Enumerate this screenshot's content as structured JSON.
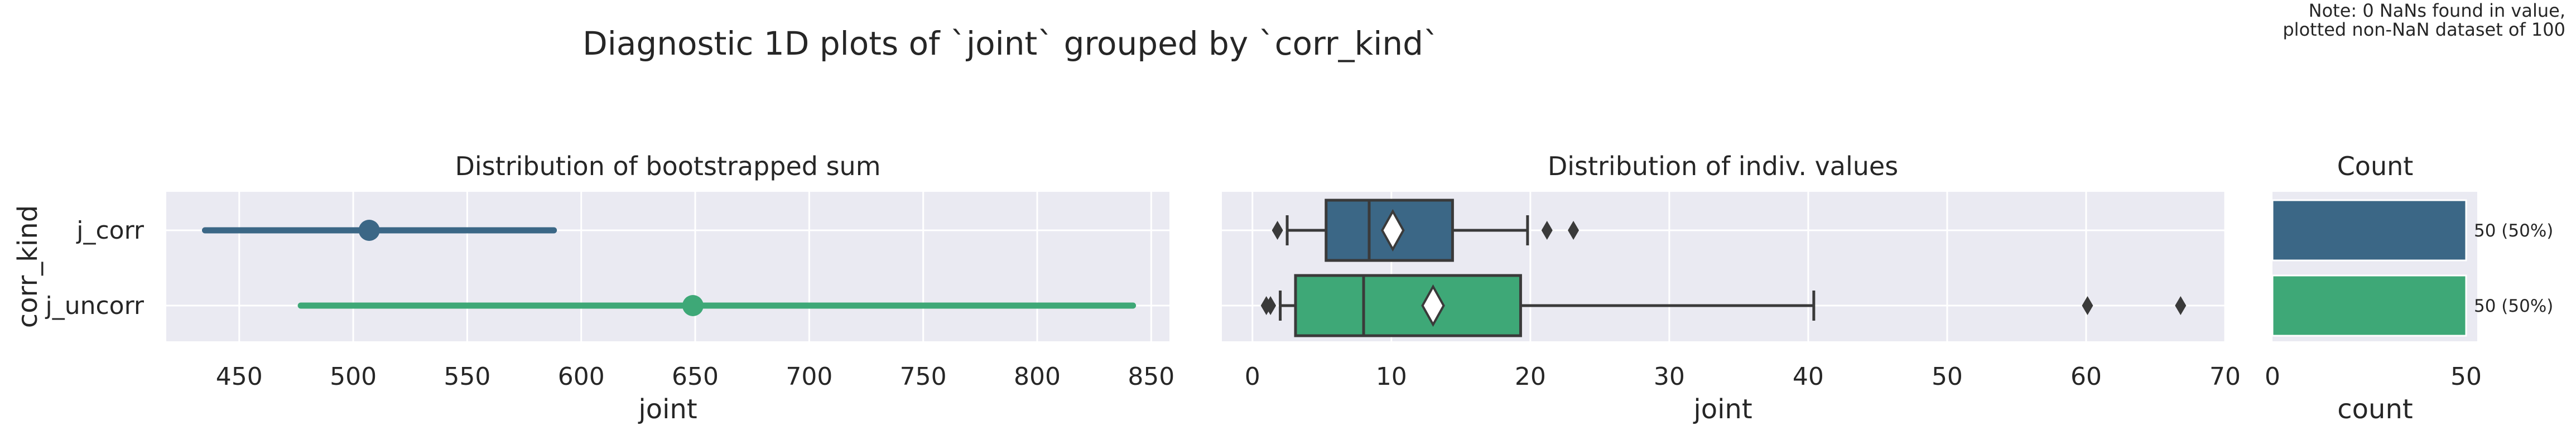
{
  "suptitle": "Diagnostic 1D plots of `joint` grouped by `corr_kind`",
  "note_lines": [
    "Note: 0 NaNs found in value,",
    "plotted non-NaN dataset of 100"
  ],
  "colors": {
    "j_corr": "#3b6786",
    "j_uncorr": "#3ea877",
    "panel_bg": "#eaeaf2",
    "grid": "#ffffff",
    "text": "#262626",
    "box_line": "#3a3a3a"
  },
  "chart_data": [
    {
      "type": "pointplot",
      "title": "Distribution of bootstrapped sum",
      "xlabel": "joint",
      "ylabel": "corr_kind",
      "categories": [
        "j_corr",
        "j_uncorr"
      ],
      "xlim": [
        418,
        858
      ],
      "xticks": [
        450,
        500,
        550,
        600,
        650,
        700,
        750,
        800,
        850
      ],
      "grid": true,
      "points": [
        {
          "category": "j_corr",
          "estimate": 507,
          "ci": [
            435,
            588
          ]
        },
        {
          "category": "j_uncorr",
          "estimate": 649,
          "ci": [
            477,
            842
          ]
        }
      ]
    },
    {
      "type": "boxplot",
      "title": "Distribution of indiv. values",
      "xlabel": "joint",
      "categories": [
        "j_corr",
        "j_uncorr"
      ],
      "xlim": [
        -2.2,
        70
      ],
      "xticks": [
        0,
        10,
        20,
        30,
        40,
        50,
        60,
        70
      ],
      "grid": true,
      "boxes": [
        {
          "category": "j_corr",
          "whisker_low": 2.5,
          "q1": 5.3,
          "median": 8.4,
          "q3": 14.4,
          "whisker_high": 19.8,
          "mean": 10.1,
          "outliers": [
            1.8,
            21.2,
            23.1
          ]
        },
        {
          "category": "j_uncorr",
          "whisker_low": 2.0,
          "q1": 3.1,
          "median": 8.0,
          "q3": 19.3,
          "whisker_high": 40.4,
          "mean": 13.0,
          "outliers": [
            1.0,
            1.3,
            60.1,
            66.8
          ]
        }
      ]
    },
    {
      "type": "bar",
      "orientation": "horizontal",
      "title": "Count",
      "xlabel": "count",
      "categories": [
        "j_corr",
        "j_uncorr"
      ],
      "values": [
        50,
        50
      ],
      "xlim": [
        0,
        50
      ],
      "xticks": [
        0,
        50
      ],
      "bar_labels": [
        "50 (50%)",
        "50 (50%)"
      ]
    }
  ]
}
